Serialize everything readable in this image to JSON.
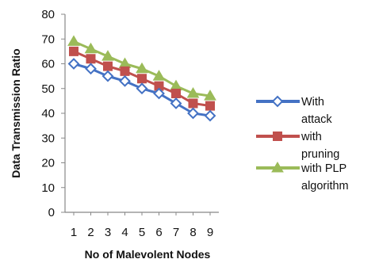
{
  "chart_data": {
    "type": "line",
    "title": "",
    "xlabel": "No of Malevolent Nodes",
    "ylabel": "Data Transmission Ratio",
    "x": [
      1,
      2,
      3,
      4,
      5,
      6,
      7,
      8,
      9
    ],
    "ylim": [
      0,
      80
    ],
    "yticks": [
      0,
      10,
      20,
      30,
      40,
      50,
      60,
      70,
      80
    ],
    "grid": false,
    "legend_position": "right",
    "series": [
      {
        "name": "With attack",
        "legend_lines": [
          "With",
          "attack"
        ],
        "marker": "diamond",
        "color": "#4472C4",
        "values": [
          60,
          58,
          55,
          53,
          50,
          48,
          44,
          40,
          39
        ]
      },
      {
        "name": "with pruning",
        "legend_lines": [
          "with",
          "pruning"
        ],
        "marker": "square",
        "color": "#C0504D",
        "values": [
          65,
          62,
          59,
          57,
          54,
          51,
          48,
          44,
          43
        ]
      },
      {
        "name": "with PLP algorithm",
        "legend_lines": [
          "with PLP",
          "algorithm"
        ],
        "marker": "triangle",
        "color": "#9BBB59",
        "values": [
          69,
          66,
          63,
          60,
          58,
          55,
          51,
          48,
          47
        ]
      }
    ]
  }
}
